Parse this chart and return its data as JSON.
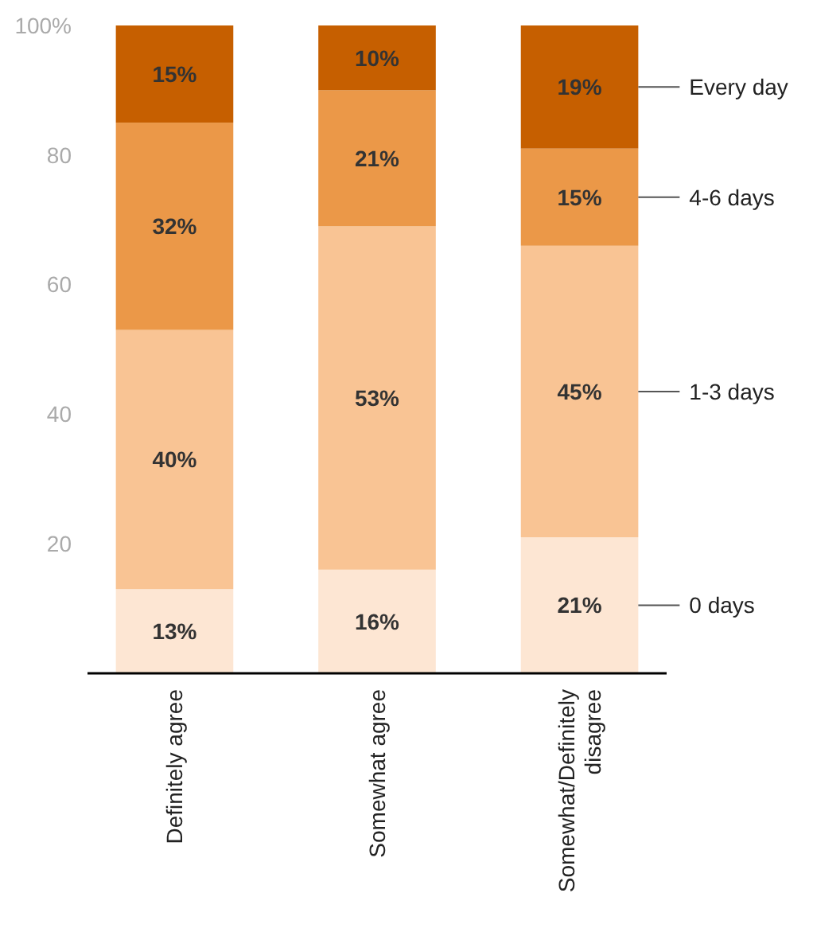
{
  "chart_data": {
    "type": "bar",
    "stacked": true,
    "categories": [
      "Definitely agree",
      "Somewhat agree",
      "Somewhat/Definitely disagree"
    ],
    "series": [
      {
        "name": "0 days",
        "color": "#fde6d3",
        "values": [
          13,
          16,
          21
        ],
        "value_labels": [
          "13%",
          "16%",
          "21%"
        ]
      },
      {
        "name": "1-3 days",
        "color": "#f9c494",
        "values": [
          40,
          53,
          45
        ],
        "value_labels": [
          "40%",
          "53%",
          "45%"
        ]
      },
      {
        "name": "4-6 days",
        "color": "#eb9848",
        "values": [
          32,
          21,
          15
        ],
        "value_labels": [
          "32%",
          "21%",
          "15%"
        ]
      },
      {
        "name": "Every day",
        "color": "#c65f00",
        "values": [
          15,
          10,
          19
        ],
        "value_labels": [
          "15%",
          "10%",
          "19%"
        ]
      }
    ],
    "ylim": [
      0,
      100
    ],
    "yticks": [
      20,
      40,
      60,
      80,
      {
        "value": 100,
        "label": "100%"
      }
    ],
    "grid": false,
    "legend": "right"
  }
}
